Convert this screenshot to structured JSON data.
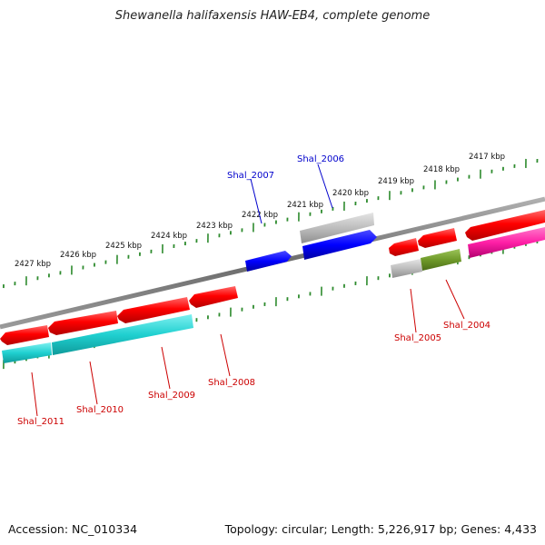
{
  "title": "Shewanella halifaxensis HAW-EB4, complete genome",
  "footer": {
    "accession": "Accession: NC_010334",
    "topology": "Topology: circular; Length: 5,226,917 bp; Genes: 4,433"
  },
  "scale_labels": [
    "2427 kbp",
    "2426 kbp",
    "2425 kbp",
    "2424 kbp",
    "2423 kbp",
    "2422 kbp",
    "2421 kbp",
    "2420 kbp",
    "2419 kbp",
    "2418 kbp",
    "2417 kbp"
  ],
  "gene_labels": [
    {
      "text": "Shal_2007",
      "color": "#0000cc"
    },
    {
      "text": "Shal_2006",
      "color": "#0000cc"
    },
    {
      "text": "Shal_2011",
      "color": "#cc0000"
    },
    {
      "text": "Shal_2010",
      "color": "#cc0000"
    },
    {
      "text": "Shal_2009",
      "color": "#cc0000"
    },
    {
      "text": "Shal_2008",
      "color": "#cc0000"
    },
    {
      "text": "Shal_2005",
      "color": "#cc0000"
    },
    {
      "text": "Shal_2004",
      "color": "#cc0000"
    }
  ],
  "colors": {
    "backbone": "#808080",
    "tick": "#2e8b2e",
    "cds": "#ff0000",
    "rna": "#0000ff",
    "pseudo": "#bdbdbd",
    "cyan": "#1fd0d0",
    "olive": "#6f9a2a",
    "magenta": "#ff1fa6"
  }
}
